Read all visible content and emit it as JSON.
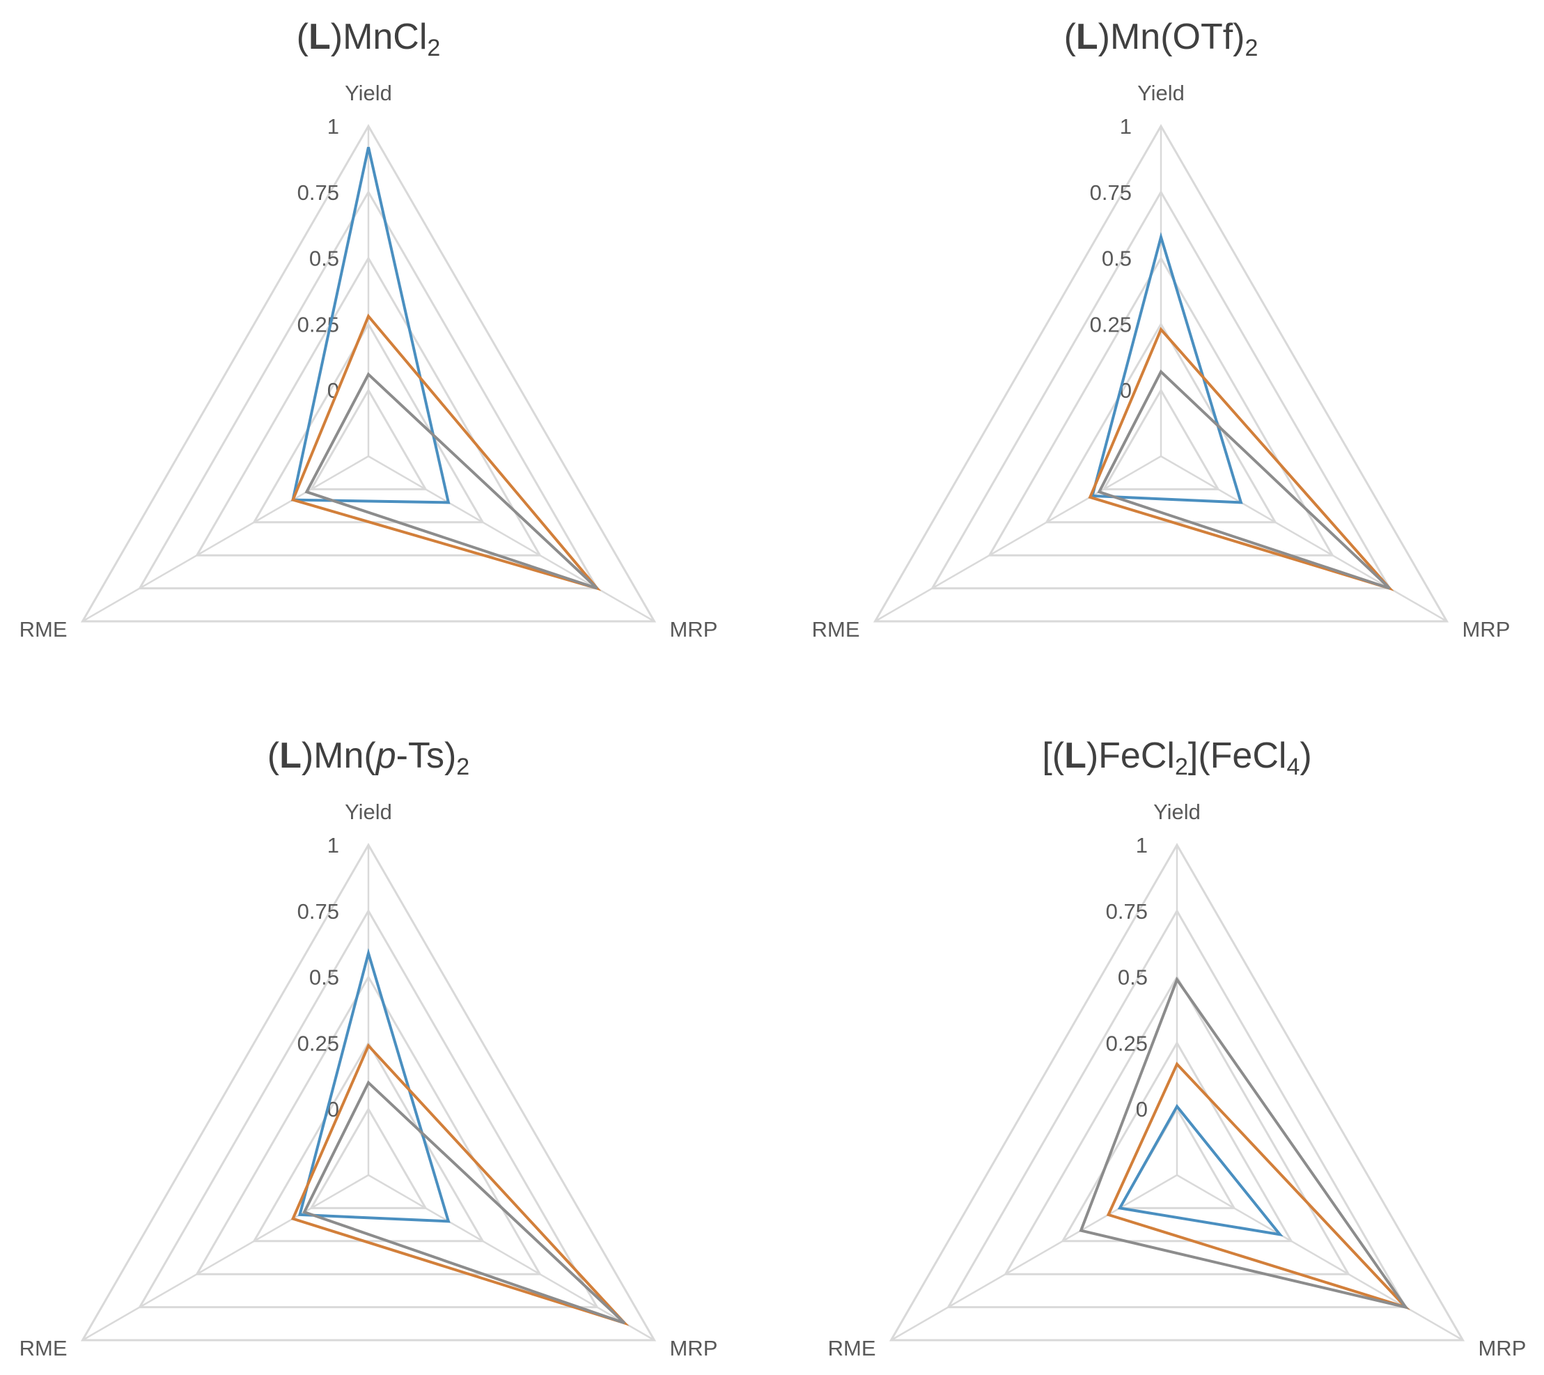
{
  "colors": {
    "grid": "#d9d9d9",
    "text": "#595959",
    "title": "#404040",
    "series": [
      "#4a8fc0",
      "#d27f3a",
      "#8c8c8c"
    ]
  },
  "chart_data": [
    {
      "type": "radar",
      "title_parts": [
        {
          "text": "(",
          "style": "normal"
        },
        {
          "text": "L",
          "style": "bold"
        },
        {
          "text": ")MnCl",
          "style": "normal"
        },
        {
          "text": "2",
          "style": "sub"
        }
      ],
      "axes": [
        "Yield",
        "MRP",
        "RME"
      ],
      "ticks": [
        "0",
        "0.25",
        "0.5",
        "0.75",
        "1"
      ],
      "rmax": 1,
      "series": [
        {
          "values": [
            0.92,
            0.1,
            0.08
          ]
        },
        {
          "values": [
            0.28,
            0.75,
            0.08
          ]
        },
        {
          "values": [
            0.06,
            0.75,
            0.02
          ]
        }
      ]
    },
    {
      "type": "radar",
      "title_parts": [
        {
          "text": "(",
          "style": "normal"
        },
        {
          "text": "L",
          "style": "bold"
        },
        {
          "text": ")Mn(OTf)",
          "style": "normal"
        },
        {
          "text": "2",
          "style": "sub"
        }
      ],
      "axes": [
        "Yield",
        "MRP",
        "RME"
      ],
      "ticks": [
        "0",
        "0.25",
        "0.5",
        "0.75",
        "1"
      ],
      "rmax": 1,
      "series": [
        {
          "values": [
            0.58,
            0.1,
            0.05
          ]
        },
        {
          "values": [
            0.23,
            0.75,
            0.06
          ]
        },
        {
          "values": [
            0.07,
            0.75,
            0.02
          ]
        }
      ]
    },
    {
      "type": "radar",
      "title_parts": [
        {
          "text": "(",
          "style": "normal"
        },
        {
          "text": "L",
          "style": "bold"
        },
        {
          "text": ")Mn(",
          "style": "normal"
        },
        {
          "text": "p",
          "style": "italic"
        },
        {
          "text": "-Ts)",
          "style": "normal"
        },
        {
          "text": "2",
          "style": "sub"
        }
      ],
      "axes": [
        "Yield",
        "MRP",
        "RME"
      ],
      "ticks": [
        "0",
        "0.25",
        "0.5",
        "0.75",
        "1"
      ],
      "rmax": 1,
      "series": [
        {
          "values": [
            0.59,
            0.1,
            0.05
          ]
        },
        {
          "values": [
            0.24,
            0.87,
            0.08
          ]
        },
        {
          "values": [
            0.1,
            0.87,
            0.03
          ]
        }
      ]
    },
    {
      "type": "radar",
      "title_parts": [
        {
          "text": "[(",
          "style": "normal"
        },
        {
          "text": "L",
          "style": "bold"
        },
        {
          "text": ")FeCl",
          "style": "normal"
        },
        {
          "text": "2",
          "style": "sub"
        },
        {
          "text": "](FeCl",
          "style": "normal"
        },
        {
          "text": "4",
          "style": "sub"
        },
        {
          "text": ")",
          "style": "normal"
        }
      ],
      "axes": [
        "Yield",
        "MRP",
        "RME"
      ],
      "ticks": [
        "0",
        "0.25",
        "0.5",
        "0.75",
        "1"
      ],
      "rmax": 1,
      "series": [
        {
          "values": [
            0.01,
            0.2,
            0.0
          ]
        },
        {
          "values": [
            0.17,
            0.75,
            0.05
          ]
        },
        {
          "values": [
            0.49,
            0.75,
            0.17
          ]
        }
      ]
    }
  ]
}
